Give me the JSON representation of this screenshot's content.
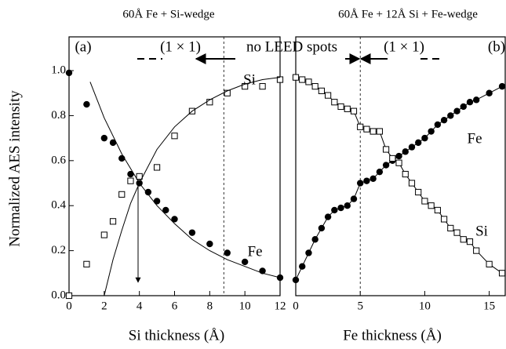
{
  "chart_data": [
    {
      "type": "scatter",
      "title": "60Å Fe + Si-wedge",
      "xlabel": "Si thickness (Å)",
      "ylabel": "Normalized AES intensity",
      "xlim": [
        0,
        12
      ],
      "ylim": [
        0,
        1.15
      ],
      "xticks": [
        0,
        2,
        4,
        6,
        8,
        10,
        12
      ],
      "yticks": [
        {
          "value": 0,
          "label": "0.0"
        },
        {
          "value": 0.2,
          "label": "0.2"
        },
        {
          "value": 0.4,
          "label": "0.4"
        },
        {
          "value": 0.6,
          "label": "0.6"
        },
        {
          "value": 0.8,
          "label": "0.8"
        },
        {
          "value": 1,
          "label": "1.0"
        }
      ],
      "dashed_lines": [
        8.8
      ],
      "annotations": [
        "(a)",
        "(1 × 1)",
        "no LEED spots"
      ],
      "series": [
        {
          "name": "Fe",
          "color": "#000000",
          "marker": "circle",
          "x": [
            0,
            1,
            2,
            2.5,
            3,
            3.5,
            4,
            4.5,
            5,
            5.5,
            6,
            7,
            8,
            9,
            10,
            11,
            12
          ],
          "values": [
            0.99,
            0.85,
            0.7,
            0.68,
            0.61,
            0.54,
            0.5,
            0.46,
            0.42,
            0.38,
            0.34,
            0.28,
            0.23,
            0.19,
            0.15,
            0.11,
            0.08
          ]
        },
        {
          "name": "Si",
          "color": "#000000",
          "marker": "square",
          "x": [
            0,
            1,
            2,
            2.5,
            3,
            3.5,
            4,
            5,
            6,
            7,
            8,
            9,
            10,
            11,
            12
          ],
          "values": [
            0,
            0.14,
            0.27,
            0.33,
            0.45,
            0.51,
            0.53,
            0.57,
            0.71,
            0.82,
            0.86,
            0.9,
            0.93,
            0.93,
            0.96
          ]
        },
        {
          "color": "#000000",
          "marker": "none",
          "x": [
            1.2,
            2,
            3,
            4,
            5,
            6,
            7,
            8,
            9,
            10,
            11,
            12
          ],
          "values": [
            0.95,
            0.79,
            0.63,
            0.5,
            0.4,
            0.32,
            0.25,
            0.2,
            0.16,
            0.13,
            0.1,
            0.08
          ]
        },
        {
          "color": "#000000",
          "marker": "none",
          "x": [
            2,
            2.5,
            3,
            3.5,
            4,
            5,
            6,
            7,
            8,
            9,
            10,
            11,
            12
          ],
          "values": [
            0,
            0.16,
            0.29,
            0.41,
            0.5,
            0.65,
            0.75,
            0.82,
            0.87,
            0.91,
            0.94,
            0.96,
            0.97
          ]
        }
      ]
    },
    {
      "type": "scatter",
      "title": "60Å Fe + 12Å Si + Fe-wedge",
      "xlabel": "Fe thickness (Å)",
      "xlim": [
        0,
        16.3
      ],
      "ylim": [
        0,
        1.15
      ],
      "xticks": [
        0,
        5,
        10,
        15
      ],
      "dashed_lines": [
        5
      ],
      "annotations": [
        "(b)",
        "(1 × 1)"
      ],
      "series": [
        {
          "name": "Fe",
          "color": "#000000",
          "marker": "circle",
          "line": true,
          "x": [
            0,
            0.5,
            1,
            1.5,
            2,
            2.5,
            3,
            3.5,
            4,
            4.5,
            5,
            5.5,
            6,
            6.5,
            7,
            7.5,
            8,
            8.5,
            9,
            9.5,
            10,
            10.5,
            11,
            11.5,
            12,
            12.5,
            13,
            13.5,
            14,
            15,
            16
          ],
          "values": [
            0.07,
            0.13,
            0.19,
            0.25,
            0.3,
            0.35,
            0.38,
            0.39,
            0.4,
            0.43,
            0.5,
            0.51,
            0.52,
            0.55,
            0.58,
            0.6,
            0.62,
            0.64,
            0.66,
            0.68,
            0.7,
            0.73,
            0.76,
            0.78,
            0.8,
            0.82,
            0.84,
            0.86,
            0.87,
            0.9,
            0.93
          ]
        },
        {
          "name": "Si",
          "color": "#000000",
          "marker": "square",
          "line": true,
          "x": [
            0,
            0.5,
            1,
            1.5,
            2,
            2.5,
            3,
            3.5,
            4,
            4.5,
            5,
            5.5,
            6,
            6.5,
            7,
            7.5,
            8,
            8.5,
            9,
            9.5,
            10,
            10.5,
            11,
            11.5,
            12,
            12.5,
            13,
            13.5,
            14,
            15,
            16
          ],
          "values": [
            0.97,
            0.96,
            0.95,
            0.93,
            0.91,
            0.89,
            0.86,
            0.84,
            0.83,
            0.82,
            0.75,
            0.74,
            0.73,
            0.73,
            0.65,
            0.61,
            0.59,
            0.54,
            0.5,
            0.46,
            0.42,
            0.4,
            0.38,
            0.34,
            0.3,
            0.28,
            0.25,
            0.24,
            0.2,
            0.14,
            0.1
          ]
        }
      ]
    }
  ]
}
